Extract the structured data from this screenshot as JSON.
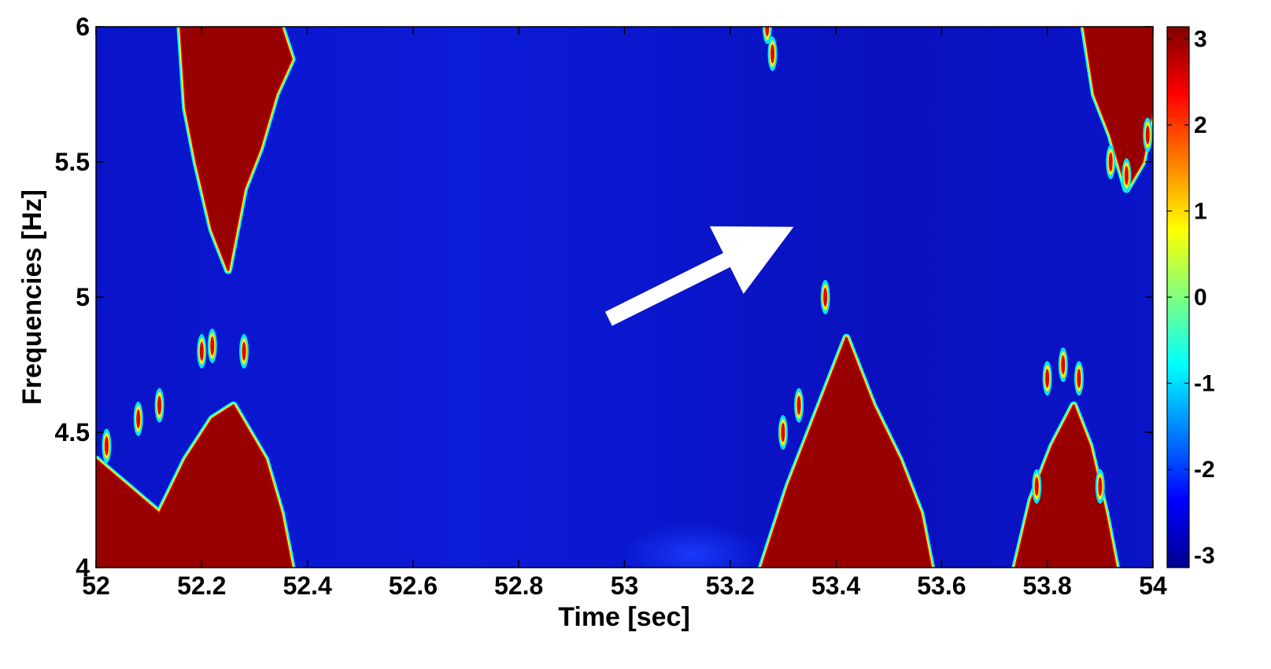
{
  "chart_data": {
    "type": "heatmap",
    "title": "",
    "xlabel": "Time [sec]",
    "ylabel": "Frequencies [Hz]",
    "xlim": [
      52,
      54
    ],
    "ylim": [
      4,
      6
    ],
    "x_ticks": [
      "52",
      "52.2",
      "52.4",
      "52.6",
      "52.8",
      "53",
      "53.2",
      "53.4",
      "53.6",
      "53.8",
      "54"
    ],
    "y_ticks": [
      "4",
      "4.5",
      "5",
      "5.5",
      "6"
    ],
    "colorbar": {
      "range": [
        -3.14,
        3.14
      ],
      "ticks": [
        "-3",
        "-2",
        "-1",
        "0",
        "1",
        "2",
        "3"
      ],
      "colormap": "jet"
    },
    "background_value": -3,
    "annotation": {
      "type": "arrow",
      "color": "#ffffff",
      "from": [
        52.97,
        4.92
      ],
      "to": [
        53.32,
        5.26
      ]
    },
    "high_phase_regions": [
      {
        "value": 3.14,
        "polygon": [
          [
            52.16,
            6
          ],
          [
            52.35,
            6
          ],
          [
            52.37,
            5.88
          ],
          [
            52.34,
            5.75
          ],
          [
            52.31,
            5.55
          ],
          [
            52.28,
            5.4
          ],
          [
            52.25,
            5.1
          ],
          [
            52.22,
            5.25
          ],
          [
            52.19,
            5.5
          ],
          [
            52.17,
            5.7
          ]
        ]
      },
      {
        "value": 3.14,
        "polygon": [
          [
            52.0,
            4.4
          ],
          [
            52.06,
            4.3
          ],
          [
            52.12,
            4.2
          ],
          [
            52.17,
            4.4
          ],
          [
            52.22,
            4.55
          ],
          [
            52.26,
            4.6
          ],
          [
            52.32,
            4.4
          ],
          [
            52.35,
            4.2
          ],
          [
            52.37,
            4.0
          ],
          [
            52.0,
            4.0
          ]
        ]
      },
      {
        "value": 3.14,
        "polygon": [
          [
            53.26,
            4.0
          ],
          [
            53.31,
            4.3
          ],
          [
            53.36,
            4.55
          ],
          [
            53.42,
            4.85
          ],
          [
            53.47,
            4.6
          ],
          [
            53.52,
            4.4
          ],
          [
            53.56,
            4.2
          ],
          [
            53.58,
            4.0
          ]
        ]
      },
      {
        "value": 3.14,
        "polygon": [
          [
            53.74,
            4.0
          ],
          [
            53.77,
            4.25
          ],
          [
            53.81,
            4.45
          ],
          [
            53.85,
            4.6
          ],
          [
            53.88,
            4.45
          ],
          [
            53.91,
            4.2
          ],
          [
            53.93,
            4.0
          ]
        ]
      },
      {
        "value": 3.14,
        "polygon": [
          [
            53.87,
            6
          ],
          [
            54.0,
            6
          ],
          [
            54.0,
            5.7
          ],
          [
            53.98,
            5.5
          ],
          [
            53.95,
            5.4
          ],
          [
            53.92,
            5.6
          ],
          [
            53.89,
            5.75
          ]
        ]
      }
    ],
    "speckles": [
      [
        52.2,
        4.8
      ],
      [
        52.22,
        4.82
      ],
      [
        52.28,
        4.8
      ],
      [
        52.12,
        4.6
      ],
      [
        52.08,
        4.55
      ],
      [
        52.02,
        4.45
      ],
      [
        53.27,
        6.0
      ],
      [
        53.28,
        5.9
      ],
      [
        53.38,
        5.0
      ],
      [
        53.3,
        4.5
      ],
      [
        53.33,
        4.6
      ],
      [
        53.8,
        4.7
      ],
      [
        53.83,
        4.75
      ],
      [
        53.86,
        4.7
      ],
      [
        53.78,
        4.3
      ],
      [
        53.9,
        4.3
      ],
      [
        53.92,
        5.5
      ],
      [
        53.95,
        5.45
      ],
      [
        53.99,
        5.6
      ]
    ]
  }
}
